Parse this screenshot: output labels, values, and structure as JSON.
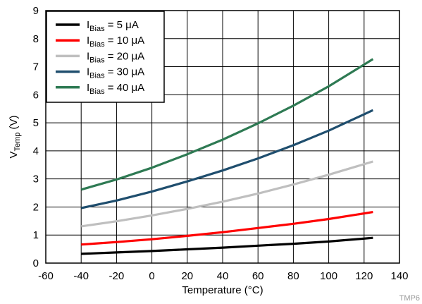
{
  "chart_data": {
    "type": "line",
    "title": "",
    "xlabel": "Temperature (°C)",
    "ylabel": {
      "main": "V",
      "sub": "Temp",
      "unit": " (V)"
    },
    "xlim": [
      -60,
      140
    ],
    "ylim": [
      0,
      9
    ],
    "xticks": [
      -60,
      -40,
      -20,
      0,
      20,
      40,
      60,
      80,
      100,
      120,
      140
    ],
    "yticks": [
      0,
      1,
      2,
      3,
      4,
      5,
      6,
      7,
      8,
      9
    ],
    "grid": true,
    "legend_position": "top-left",
    "x": [
      -40,
      -20,
      0,
      20,
      40,
      60,
      80,
      100,
      125
    ],
    "series": [
      {
        "name": {
          "main": "I",
          "sub": "Bias",
          "rest": " = 5 μA"
        },
        "color": "#000000",
        "values": [
          0.33,
          0.38,
          0.43,
          0.49,
          0.55,
          0.62,
          0.69,
          0.77,
          0.9
        ]
      },
      {
        "name": {
          "main": "I",
          "sub": "Bias",
          "rest": " = 10 μA"
        },
        "color": "#ff0000",
        "values": [
          0.66,
          0.75,
          0.85,
          0.97,
          1.1,
          1.25,
          1.4,
          1.57,
          1.82
        ]
      },
      {
        "name": {
          "main": "I",
          "sub": "Bias",
          "rest": " = 20 μA"
        },
        "color": "#bfbfbf",
        "values": [
          1.31,
          1.49,
          1.7,
          1.93,
          2.19,
          2.48,
          2.8,
          3.15,
          3.62
        ]
      },
      {
        "name": {
          "main": "I",
          "sub": "Bias",
          "rest": " = 30 μA"
        },
        "color": "#1f4e6e",
        "values": [
          1.96,
          2.23,
          2.55,
          2.91,
          3.3,
          3.73,
          4.2,
          4.72,
          5.45
        ]
      },
      {
        "name": {
          "main": "I",
          "sub": "Bias",
          "rest": " = 40 μA"
        },
        "color": "#2e7a53",
        "values": [
          2.62,
          2.98,
          3.4,
          3.88,
          4.4,
          4.98,
          5.61,
          6.3,
          7.27
        ]
      }
    ],
    "footnote": "TMP6"
  }
}
